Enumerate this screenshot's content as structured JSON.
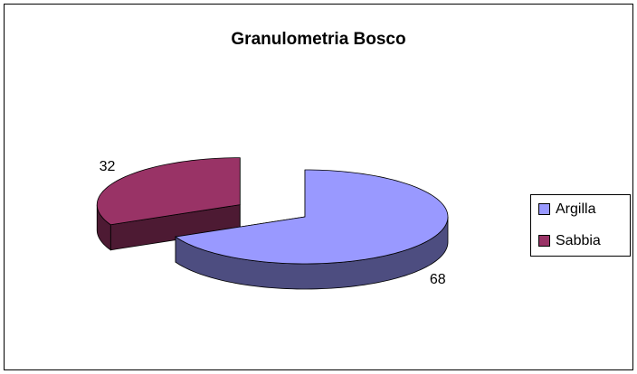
{
  "chart_data": {
    "type": "pie",
    "title": "Granulometria Bosco",
    "categories": [
      "Argilla",
      "Sabbia"
    ],
    "values": [
      68,
      32
    ],
    "colors": [
      "#9999ff",
      "#993366"
    ],
    "legend": "right"
  }
}
